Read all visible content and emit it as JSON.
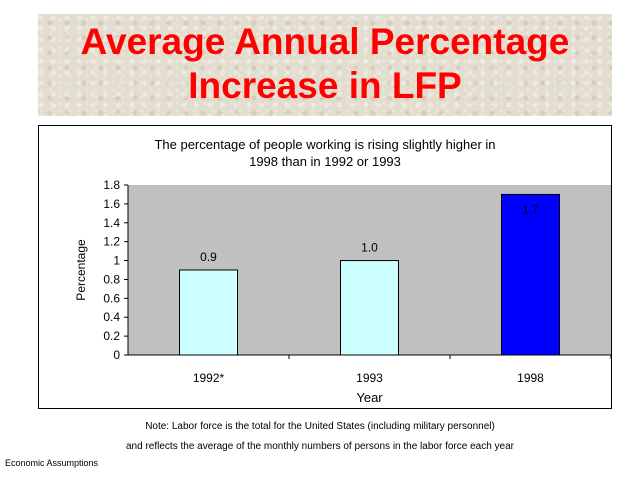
{
  "title": {
    "line1": "Average Annual Percentage",
    "line2": "Increase in LFP"
  },
  "notes": {
    "line1": "Note: Labor force is the total for the United States (including military personnel)",
    "line2": "and reflects the average of the monthly numbers of persons in the labor force each year"
  },
  "footer": "Economic Assumptions",
  "colors": {
    "title": "#ff0000",
    "plot_bg": "#c0c0c0",
    "bar_light": "#ccffff",
    "bar_dark": "#0000ff"
  },
  "chart_data": {
    "type": "bar",
    "title_line1": "The percentage of people working is rising slightly higher in",
    "title_line2": "1998 than in 1992 or 1993",
    "categories": [
      "1992*",
      "1993",
      "1998"
    ],
    "values": [
      0.9,
      1.0,
      1.7
    ],
    "data_labels": [
      "0.9",
      "1.0",
      "1.7"
    ],
    "bar_colors": [
      "#ccffff",
      "#ccffff",
      "#0000ff"
    ],
    "xlabel": "Year",
    "ylabel": "Percentage",
    "ylim": [
      0,
      1.8
    ],
    "yticks": [
      "0",
      "0.2",
      "0.4",
      "0.6",
      "0.8",
      "1",
      "1.2",
      "1.4",
      "1.6",
      "1.8"
    ],
    "grid": false,
    "legend": "none"
  }
}
